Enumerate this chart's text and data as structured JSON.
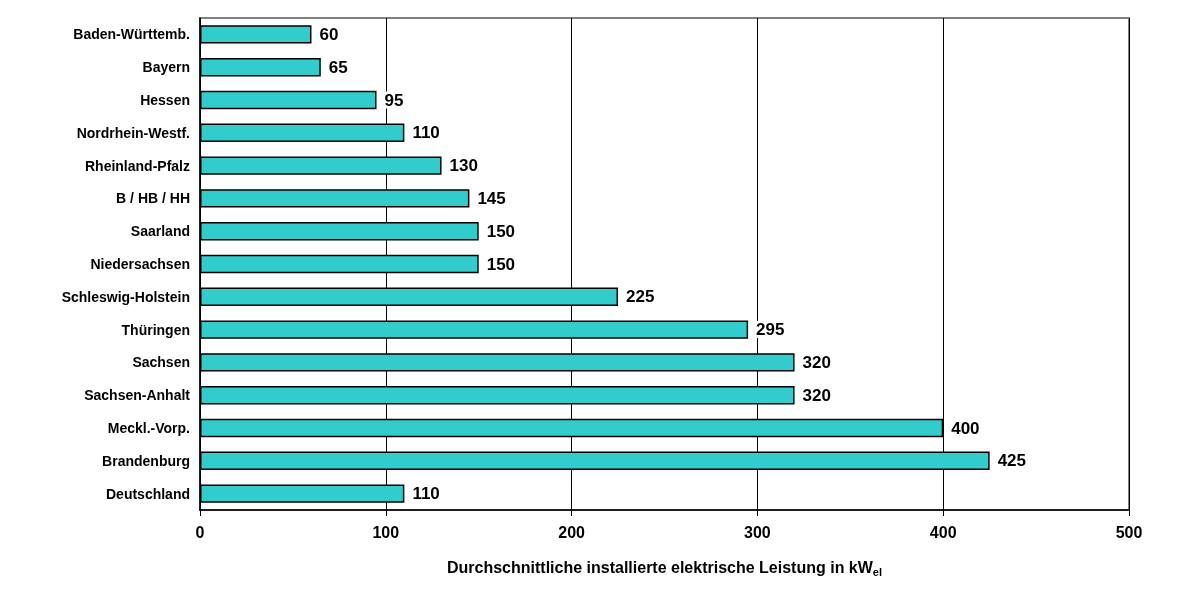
{
  "chart_data": {
    "type": "bar",
    "orientation": "horizontal",
    "xlabel": "Durchschnittliche installierte elektrische Leistung in kW$_{el}$",
    "categories": [
      "Baden-Württemb.",
      "Bayern",
      "Hessen",
      "Nordrhein-Westf.",
      "Rheinland-Pfalz",
      "B / HB / HH",
      "Saarland",
      "Niedersachsen",
      "Schleswig-Holstein",
      "Thüringen",
      "Sachsen",
      "Sachsen-Anhalt",
      "Meckl.-Vorp.",
      "Brandenburg",
      "Deutschland"
    ],
    "values": [
      60,
      65,
      95,
      110,
      130,
      145,
      150,
      150,
      225,
      295,
      320,
      320,
      400,
      425,
      110
    ],
    "color": "#33cccc",
    "xlim": [
      0,
      500
    ],
    "xticks": [
      0,
      100,
      200,
      300,
      400,
      500
    ],
    "grid": "x",
    "data_labels": true
  }
}
